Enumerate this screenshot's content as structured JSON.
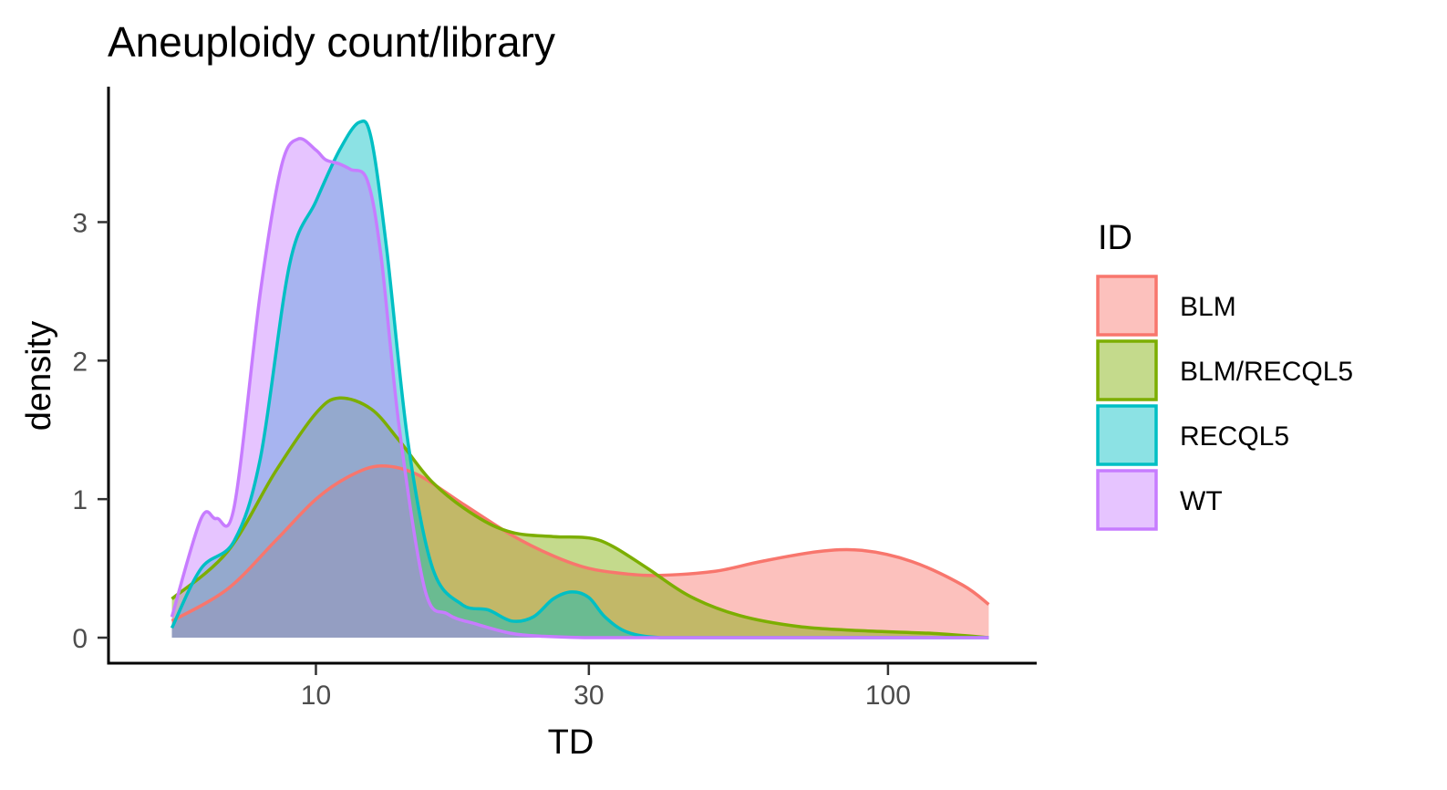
{
  "chart_data": {
    "type": "area",
    "title": "Aneuploidy count/library",
    "xlabel": "TD",
    "ylabel": "density",
    "x_scale": "log10",
    "xlim": [
      5.1,
      152
    ],
    "ylim": [
      0,
      3.8
    ],
    "x_ticks": [
      10,
      30,
      100
    ],
    "x_tick_labels": [
      "10",
      "30",
      "100"
    ],
    "y_ticks": [
      0,
      1,
      2,
      3
    ],
    "y_tick_labels": [
      "0",
      "1",
      "2",
      "3"
    ],
    "grid": false,
    "legend": {
      "title": "ID",
      "position": "right"
    },
    "series": [
      {
        "name": "BLM",
        "color": "#F8766D",
        "x": [
          5.6,
          7,
          8.5,
          10,
          11.5,
          13,
          15,
          18,
          22,
          26,
          30,
          35,
          40,
          50,
          60,
          75,
          90,
          110,
          135,
          150
        ],
        "y": [
          0.12,
          0.35,
          0.7,
          1.0,
          1.17,
          1.24,
          1.18,
          0.97,
          0.74,
          0.59,
          0.5,
          0.46,
          0.45,
          0.48,
          0.55,
          0.62,
          0.63,
          0.55,
          0.38,
          0.24
        ]
      },
      {
        "name": "BLM/RECQL5",
        "color": "#7CAE00",
        "x": [
          5.6,
          7,
          8.5,
          10,
          11,
          12.5,
          14,
          16,
          19,
          22,
          26,
          30,
          33,
          38,
          45,
          55,
          70,
          90,
          120,
          150
        ],
        "y": [
          0.28,
          0.62,
          1.2,
          1.62,
          1.73,
          1.65,
          1.42,
          1.12,
          0.88,
          0.76,
          0.73,
          0.72,
          0.66,
          0.5,
          0.3,
          0.16,
          0.08,
          0.05,
          0.03,
          0.0
        ]
      },
      {
        "name": "RECQL5",
        "color": "#00BFC4",
        "x": [
          5.6,
          6.3,
          7.2,
          8,
          9,
          10,
          11,
          11.9,
          12.5,
          13.3,
          14.5,
          16,
          18,
          20,
          22,
          24,
          26,
          28,
          30,
          32,
          35,
          40,
          50,
          80,
          150
        ],
        "y": [
          0.07,
          0.5,
          0.7,
          1.3,
          2.7,
          3.15,
          3.52,
          3.72,
          3.6,
          2.8,
          1.4,
          0.5,
          0.24,
          0.2,
          0.12,
          0.15,
          0.28,
          0.33,
          0.29,
          0.15,
          0.04,
          0.0,
          0.0,
          0.0,
          0.0
        ]
      },
      {
        "name": "WT",
        "color": "#C77CFF",
        "x": [
          5.6,
          6.3,
          6.7,
          7.2,
          8,
          8.7,
          9.3,
          10,
          10.4,
          11,
          11.5,
          12.3,
          13,
          14,
          15.5,
          17,
          19,
          22,
          25,
          30,
          40,
          60,
          100,
          150
        ],
        "y": [
          0.15,
          0.86,
          0.86,
          0.95,
          2.5,
          3.4,
          3.6,
          3.52,
          3.45,
          3.42,
          3.38,
          3.3,
          2.75,
          1.5,
          0.35,
          0.17,
          0.1,
          0.03,
          0.01,
          0.0,
          0.0,
          0.0,
          0.0,
          0.0
        ]
      }
    ]
  }
}
